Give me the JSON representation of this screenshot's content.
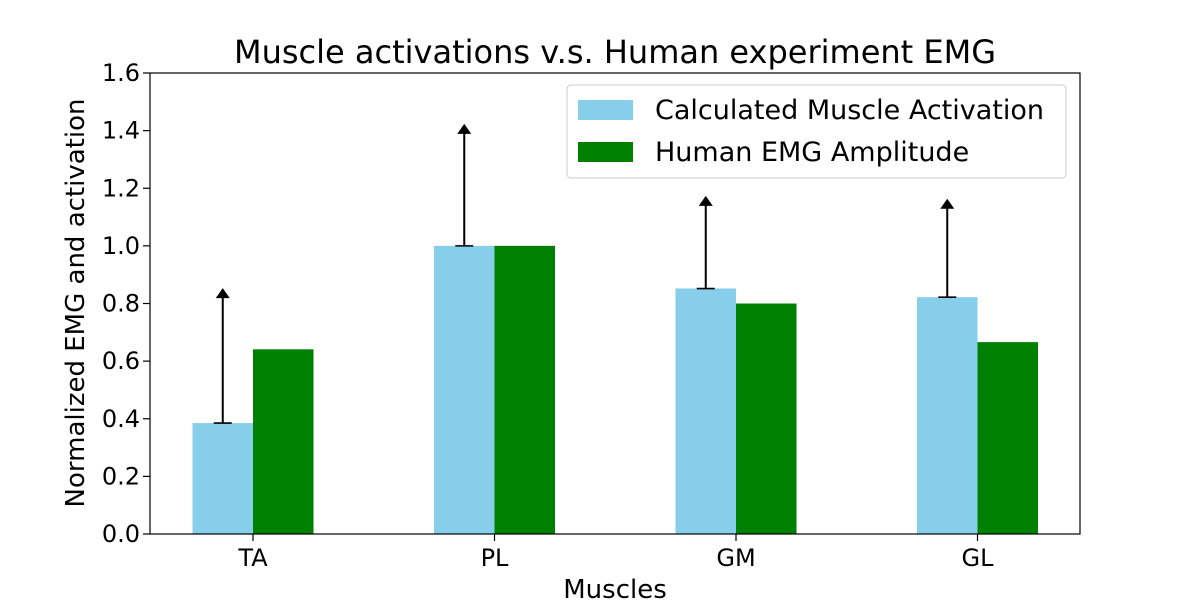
{
  "chart_data": {
    "type": "bar",
    "title": "Muscle activations v.s. Human experiment EMG",
    "xlabel": "Muscles",
    "ylabel": "Normalized EMG and activation",
    "categories": [
      "TA",
      "PL",
      "GM",
      "GL"
    ],
    "ylim": [
      0.0,
      1.6
    ],
    "yticks": [
      "0.0",
      "0.2",
      "0.4",
      "0.6",
      "0.8",
      "1.0",
      "1.2",
      "1.4",
      "1.6"
    ],
    "grid": false,
    "legend_position": "top-right",
    "series": [
      {
        "name": "Calculated Muscle Activation",
        "color": "#87ceeb",
        "values": [
          0.385,
          1.0,
          0.852,
          0.822
        ]
      },
      {
        "name": "Human EMG Amplitude",
        "color": "#008000",
        "values": [
          0.641,
          1.0,
          0.8,
          0.666
        ]
      }
    ],
    "error_bars": {
      "series": "Calculated Muscle Activation",
      "style": "upper-limit arrow",
      "color": "#000000",
      "upper": [
        0.85,
        1.42,
        1.17,
        1.16
      ]
    }
  }
}
